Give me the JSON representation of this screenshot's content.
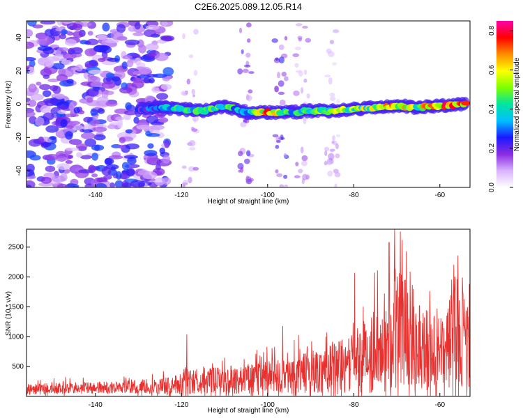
{
  "title": "C2E6.2025.089.12.05.R14",
  "chart_data": [
    {
      "type": "heatmap",
      "xlabel": "Height of straight line (km)",
      "ylabel": "Frequency (Hz)",
      "xlim": [
        -156,
        -53
      ],
      "ylim": [
        -50,
        50
      ],
      "x_ticks": [
        -140,
        -120,
        -100,
        -80,
        -60
      ],
      "y_ticks": [
        -40,
        -20,
        0,
        20,
        40
      ],
      "colorbar": {
        "label": "Normalized spectral amplitude",
        "range": [
          0.0,
          0.85
        ],
        "ticks": [
          0.0,
          0.2,
          0.4,
          0.6,
          0.8
        ],
        "colormap": [
          "#ffffff",
          "#d9b3ff",
          "#8a2be2",
          "#1a1aff",
          "#00bfff",
          "#00e5a0",
          "#7fff00",
          "#ffff00",
          "#ff8c00",
          "#ff0000",
          "#ff00aa"
        ]
      },
      "ridge": {
        "x": [
          -130,
          -125,
          -120,
          -115,
          -110,
          -105,
          -100,
          -95,
          -90,
          -85,
          -80,
          -75,
          -70,
          -65,
          -60,
          -55,
          -54
        ],
        "frequency": [
          -3,
          -2,
          -3,
          -4,
          -1,
          -5,
          -5,
          -5,
          -4,
          -4,
          -3,
          -2,
          -1,
          -2,
          -1,
          0,
          0
        ],
        "amplitude": [
          0.25,
          0.35,
          0.45,
          0.5,
          0.5,
          0.4,
          0.7,
          0.45,
          0.5,
          0.55,
          0.55,
          0.6,
          0.7,
          0.6,
          0.75,
          0.8,
          0.7
        ]
      },
      "noise_region": {
        "x_range": [
          -156,
          -123
        ],
        "frequency_range": [
          -50,
          50
        ],
        "amplitude": 0.25
      }
    },
    {
      "type": "line",
      "xlabel": "Height of straight line (km)",
      "ylabel": "SNR (10 * v/v)",
      "xlim": [
        -156,
        -53
      ],
      "ylim": [
        0,
        2800
      ],
      "x_ticks": [
        -140,
        -120,
        -100,
        -80,
        -60
      ],
      "y_ticks": [
        500,
        1000,
        1500,
        2000,
        2500
      ],
      "series": [
        {
          "color": "#e8312f",
          "x": [
            -156,
            -150,
            -145,
            -140,
            -135,
            -130,
            -125,
            -122,
            -120,
            -119,
            -118,
            -117,
            -115,
            -112,
            -110,
            -107,
            -105,
            -103,
            -100,
            -98,
            -97,
            -96,
            -94,
            -92,
            -90,
            -88,
            -86,
            -84,
            -82,
            -80,
            -79,
            -78,
            -76,
            -74,
            -72,
            -71,
            -70,
            -69,
            -68,
            -67,
            -66,
            -65,
            -64,
            -63,
            -62,
            -61,
            -60,
            -59,
            -58,
            -57,
            -56,
            -55,
            -54,
            -53
          ],
          "baseline": [
            120,
            130,
            140,
            140,
            150,
            160,
            170,
            180,
            210,
            240,
            260,
            250,
            260,
            260,
            270,
            280,
            300,
            300,
            320,
            330,
            320,
            320,
            350,
            380,
            420,
            420,
            470,
            540,
            500,
            560,
            620,
            650,
            720,
            860,
            980,
            1100,
            1150,
            1150,
            1100,
            1050,
            960,
            900,
            870,
            820,
            760,
            720,
            690,
            760,
            900,
            960,
            1050,
            1100,
            900,
            700
          ],
          "spread": [
            120,
            120,
            120,
            130,
            130,
            150,
            170,
            190,
            260,
            330,
            300,
            280,
            280,
            280,
            290,
            300,
            320,
            330,
            360,
            380,
            360,
            360,
            400,
            430,
            450,
            460,
            500,
            560,
            560,
            620,
            700,
            750,
            820,
            950,
            1080,
            1200,
            1300,
            1250,
            1200,
            1150,
            1060,
            1000,
            940,
            880,
            820,
            800,
            760,
            820,
            960,
            1050,
            1150,
            1200,
            1050,
            800
          ],
          "peaks": [
            {
              "x": -118.8,
              "y": 1040
            },
            {
              "x": -96.5,
              "y": 1180
            },
            {
              "x": -86.5,
              "y": 1000
            },
            {
              "x": -79.8,
              "y": 2070
            },
            {
              "x": -74.5,
              "y": 2110
            },
            {
              "x": -71.8,
              "y": 2580
            },
            {
              "x": -70.5,
              "y": 2800
            },
            {
              "x": -69.2,
              "y": 2760
            },
            {
              "x": -67.8,
              "y": 2430
            },
            {
              "x": -56.5,
              "y": 2000
            },
            {
              "x": -55.8,
              "y": 2360
            }
          ]
        }
      ]
    }
  ]
}
